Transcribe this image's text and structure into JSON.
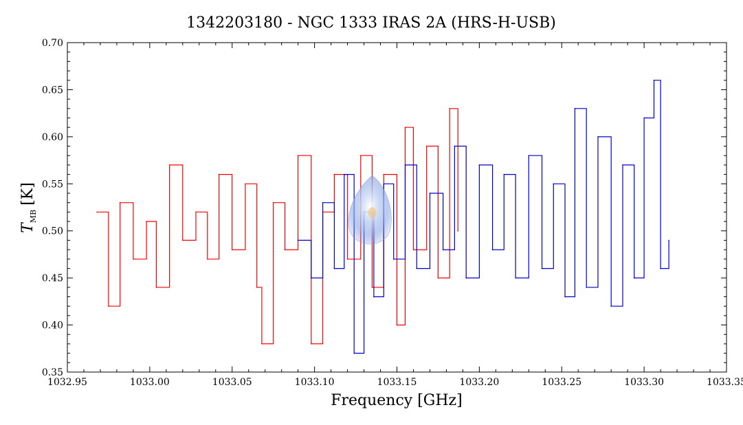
{
  "chart_data": {
    "type": "line",
    "title": "1342203180 - NGC 1333 IRAS 2A (HRS-H-USB)",
    "xlabel": "Frequency [GHz]",
    "ylabel_main": "T",
    "ylabel_sub": "MB",
    "ylabel_unit": "[K]",
    "xlim": [
      1032.95,
      1033.35
    ],
    "ylim": [
      0.35,
      0.7
    ],
    "x_ticks": [
      1032.95,
      1033.0,
      1033.05,
      1033.1,
      1033.15,
      1033.2,
      1033.25,
      1033.3,
      1033.35
    ],
    "x_tick_labels": [
      "1032.95",
      "1033.00",
      "1033.05",
      "1033.10",
      "1033.15",
      "1033.20",
      "1033.25",
      "1033.30",
      "1033.35"
    ],
    "y_ticks": [
      0.35,
      0.4,
      0.45,
      0.5,
      0.55,
      0.6,
      0.65,
      0.7
    ],
    "y_tick_labels": [
      "0.35",
      "0.40",
      "0.45",
      "0.50",
      "0.55",
      "0.60",
      "0.65",
      "0.70"
    ],
    "grid": false,
    "step_plot": true,
    "series": [
      {
        "color": "#ff0000",
        "x": [
          1032.968,
          1032.975,
          1032.982,
          1032.99,
          1032.998,
          1033.004,
          1033.012,
          1033.02,
          1033.028,
          1033.035,
          1033.042,
          1033.05,
          1033.058,
          1033.065,
          1033.068,
          1033.075,
          1033.082,
          1033.09,
          1033.098,
          1033.105,
          1033.112,
          1033.12,
          1033.128,
          1033.135,
          1033.142,
          1033.15,
          1033.155,
          1033.16,
          1033.168,
          1033.175,
          1033.182,
          1033.187
        ],
        "y": [
          0.52,
          0.42,
          0.53,
          0.47,
          0.51,
          0.44,
          0.57,
          0.49,
          0.52,
          0.47,
          0.56,
          0.48,
          0.55,
          0.44,
          0.38,
          0.53,
          0.48,
          0.58,
          0.38,
          0.52,
          0.56,
          0.47,
          0.58,
          0.44,
          0.56,
          0.4,
          0.61,
          0.48,
          0.59,
          0.45,
          0.63,
          0.5
        ]
      },
      {
        "color": "#0000cc",
        "x": [
          1033.09,
          1033.098,
          1033.105,
          1033.112,
          1033.118,
          1033.124,
          1033.13,
          1033.136,
          1033.142,
          1033.148,
          1033.155,
          1033.162,
          1033.17,
          1033.178,
          1033.185,
          1033.192,
          1033.2,
          1033.208,
          1033.215,
          1033.222,
          1033.23,
          1033.238,
          1033.245,
          1033.252,
          1033.258,
          1033.265,
          1033.272,
          1033.28,
          1033.287,
          1033.294,
          1033.3,
          1033.306,
          1033.31,
          1033.315
        ],
        "y": [
          0.49,
          0.45,
          0.53,
          0.46,
          0.56,
          0.37,
          0.52,
          0.43,
          0.55,
          0.47,
          0.57,
          0.46,
          0.54,
          0.48,
          0.59,
          0.45,
          0.57,
          0.48,
          0.56,
          0.45,
          0.58,
          0.46,
          0.55,
          0.43,
          0.63,
          0.44,
          0.6,
          0.42,
          0.57,
          0.45,
          0.62,
          0.66,
          0.46,
          0.49
        ]
      }
    ],
    "annotation_blob_at": [
      1033.135,
      0.515
    ]
  }
}
